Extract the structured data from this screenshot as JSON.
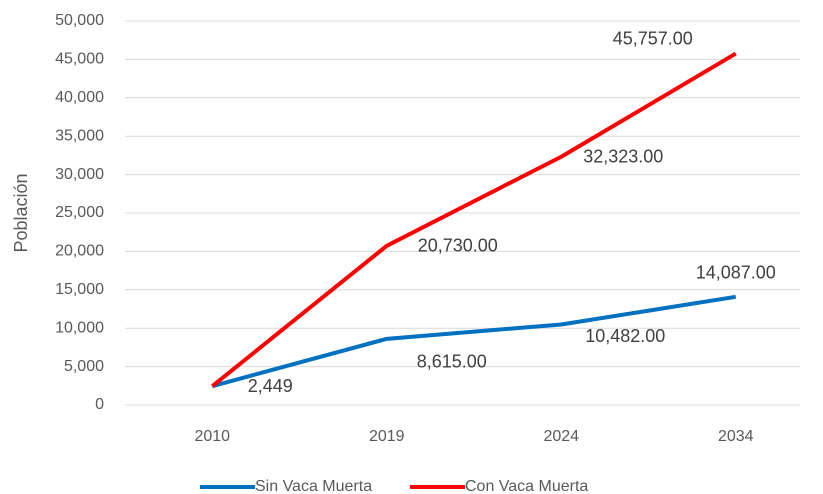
{
  "chart_data": {
    "type": "line",
    "y_label": "Población",
    "categories": [
      "2010",
      "2019",
      "2024",
      "2034"
    ],
    "series": [
      {
        "name": "Sin Vaca Muerta",
        "color": "#0070c0",
        "values": [
          2449,
          8615,
          10482,
          14087
        ],
        "value_labels": [
          "2,449",
          "8,615.00",
          "10,482.00",
          "14,087.00"
        ]
      },
      {
        "name": "Con Vaca Muerta",
        "color": "#ff0000",
        "values": [
          2449,
          20730,
          32323,
          45757
        ],
        "value_labels": [
          null,
          "20,730.00",
          "32,323.00",
          "45,757.00"
        ]
      }
    ],
    "ylim": [
      0,
      50000
    ],
    "yticks": [
      {
        "value": 0,
        "label": "0"
      },
      {
        "value": 5000,
        "label": "5,000"
      },
      {
        "value": 10000,
        "label": "10,000"
      },
      {
        "value": 15000,
        "label": "15,000"
      },
      {
        "value": 20000,
        "label": "20,000"
      },
      {
        "value": 25000,
        "label": "25,000"
      },
      {
        "value": 30000,
        "label": "30,000"
      },
      {
        "value": 35000,
        "label": "35,000"
      },
      {
        "value": 40000,
        "label": "40,000"
      },
      {
        "value": 45000,
        "label": "45,000"
      },
      {
        "value": 50000,
        "label": "50,000"
      }
    ],
    "grid": true,
    "legend": "bottom"
  }
}
